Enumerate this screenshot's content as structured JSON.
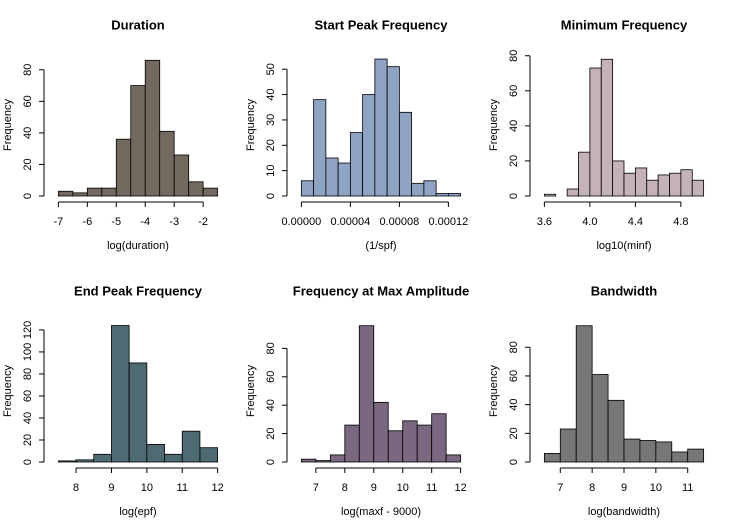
{
  "chart_data": [
    {
      "type": "histogram",
      "title": "Duration",
      "x_label": "log(duration)",
      "y_label": "Frequency",
      "color": "#736a5f",
      "bins": [
        -7,
        -6.5,
        -6,
        -5.5,
        -5,
        -4.5,
        -4,
        -3.5,
        -3,
        -2.5,
        -2,
        -1.5
      ],
      "values": [
        3,
        2,
        5,
        5,
        36,
        70,
        86,
        41,
        26,
        9,
        5
      ],
      "xlim": [
        -7.22,
        -1.28
      ],
      "xticks": [
        -7,
        -6,
        -5,
        -4,
        -3,
        -2
      ],
      "ylim": [
        0,
        90
      ],
      "yticks": [
        0,
        20,
        40,
        60,
        80
      ]
    },
    {
      "type": "histogram",
      "title": "Start Peak Frequency",
      "x_label": "(1/spf)",
      "y_label": "Frequency",
      "color": "#8fa3c4",
      "bins": [
        0,
        1e-05,
        2e-05,
        3e-05,
        4e-05,
        5e-05,
        6e-05,
        7e-05,
        8e-05,
        9e-05,
        0.0001,
        0.00011,
        0.00012,
        0.00013
      ],
      "values": [
        6,
        38,
        15,
        13,
        25,
        40,
        54,
        51,
        33,
        5,
        6,
        1,
        1
      ],
      "xlim": [
        -5.2e-06,
        0.0001352
      ],
      "xticks": [
        {
          "value": 0,
          "label": "0.00000"
        },
        {
          "value": 4e-05,
          "label": "0.00004"
        },
        {
          "value": 8e-05,
          "label": "0.00008"
        },
        {
          "value": 0.00012,
          "label": "0.00012"
        }
      ],
      "ylim": [
        0,
        56
      ],
      "yticks": [
        0,
        10,
        20,
        30,
        40,
        50
      ]
    },
    {
      "type": "histogram",
      "title": "Minimum Frequency",
      "x_label": "log10(minf)",
      "y_label": "Frequency",
      "color": "#c4b2b7",
      "bins": [
        3.6,
        3.7,
        3.8,
        3.9,
        4.0,
        4.1,
        4.2,
        4.3,
        4.4,
        4.5,
        4.6,
        4.7,
        4.8,
        4.9,
        5.0
      ],
      "values": [
        1,
        0,
        4,
        25,
        73,
        78,
        20,
        13,
        16,
        9,
        12,
        13,
        15,
        9
      ],
      "xlim": [
        3.544,
        5.056
      ],
      "xticks": [
        3.6,
        {
          "value": 4,
          "label": "4.0"
        },
        4.4,
        4.8
      ],
      "ylim": [
        0,
        81
      ],
      "yticks": [
        0,
        20,
        40,
        60,
        80
      ]
    },
    {
      "type": "histogram",
      "title": "End Peak Frequency",
      "x_label": "log(epf)",
      "y_label": "Frequency",
      "color": "#4e6a72",
      "bins": [
        7.5,
        8,
        8.5,
        9,
        9.5,
        10,
        10.5,
        11,
        11.5,
        12
      ],
      "values": [
        1,
        2,
        7,
        124,
        90,
        16,
        7,
        28,
        13
      ],
      "xlim": [
        7.32,
        12.18
      ],
      "xticks": [
        8,
        9,
        10,
        11,
        12
      ],
      "ylim": [
        0,
        129
      ],
      "yticks": [
        0,
        20,
        40,
        60,
        80,
        100,
        120
      ]
    },
    {
      "type": "histogram",
      "title": "Frequency at Max Amplitude",
      "x_label": "log(maxf - 9000)",
      "y_label": "Frequency",
      "color": "#7a6780",
      "bins": [
        6.5,
        7,
        7.5,
        8,
        8.5,
        9,
        9.5,
        10,
        10.5,
        11,
        11.5,
        12
      ],
      "values": [
        2,
        1,
        5,
        26,
        96,
        42,
        22,
        29,
        26,
        34,
        5
      ],
      "xlim": [
        6.28,
        12.22
      ],
      "xticks": [
        7,
        8,
        9,
        10,
        11,
        12
      ],
      "ylim": [
        0,
        100
      ],
      "yticks": [
        0,
        20,
        40,
        60,
        80
      ]
    },
    {
      "type": "histogram",
      "title": "Bandwidth",
      "x_label": "log(bandwidth)",
      "y_label": "Frequency",
      "color": "#777777",
      "bins": [
        6.5,
        7,
        7.5,
        8,
        8.5,
        9,
        9.5,
        10,
        10.5,
        11,
        11.5
      ],
      "values": [
        6,
        23,
        95,
        61,
        43,
        16,
        15,
        14,
        7,
        9
      ],
      "xlim": [
        6.3,
        11.7
      ],
      "xticks": [
        7,
        8,
        9,
        10,
        11
      ],
      "ylim": [
        0,
        99
      ],
      "yticks": [
        0,
        20,
        40,
        60,
        80
      ]
    }
  ]
}
